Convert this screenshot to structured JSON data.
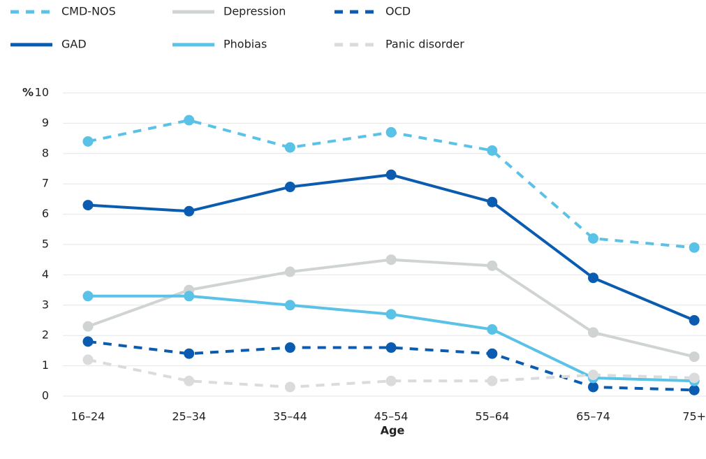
{
  "chart_data": {
    "type": "line",
    "xlabel": "Age",
    "ylabel": "%",
    "categories": [
      "16–24",
      "25–34",
      "35–44",
      "45–54",
      "55–64",
      "65–74",
      "75+"
    ],
    "ylim": [
      0,
      10
    ],
    "yticks": [
      0,
      1,
      2,
      3,
      4,
      5,
      6,
      7,
      8,
      9,
      10
    ],
    "grid": true,
    "series": [
      {
        "name": "CMD-NOS",
        "color": "#5bc2e7",
        "dashed": true,
        "values": [
          8.4,
          9.1,
          8.2,
          8.7,
          8.1,
          5.2,
          4.9
        ]
      },
      {
        "name": "Depression",
        "color": "#d0d3d4",
        "dashed": false,
        "values": [
          2.3,
          3.5,
          4.1,
          4.5,
          4.3,
          2.1,
          1.3
        ]
      },
      {
        "name": "OCD",
        "color": "#0b5cb0",
        "dashed": true,
        "values": [
          1.8,
          1.4,
          1.6,
          1.6,
          1.4,
          0.3,
          0.2
        ]
      },
      {
        "name": "GAD",
        "color": "#0b5cb0",
        "dashed": false,
        "values": [
          6.3,
          6.1,
          6.9,
          7.3,
          6.4,
          3.9,
          2.5
        ]
      },
      {
        "name": "Phobias",
        "color": "#5bc2e7",
        "dashed": false,
        "values": [
          3.3,
          3.3,
          3.0,
          2.7,
          2.2,
          0.6,
          0.5
        ]
      },
      {
        "name": "Panic disorder",
        "color": "#d9dbdc",
        "dashed": true,
        "values": [
          1.2,
          0.5,
          0.3,
          0.5,
          0.5,
          0.7,
          0.6
        ]
      }
    ]
  }
}
